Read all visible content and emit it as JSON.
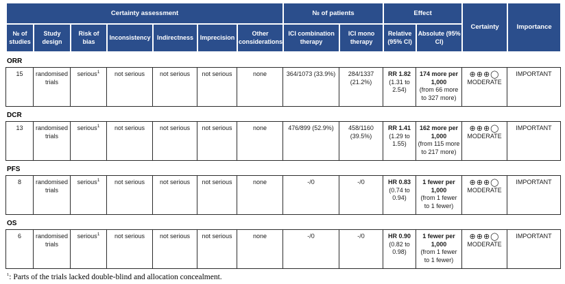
{
  "header": {
    "group_certainty": "Certainty assessment",
    "group_patients": "№ of patients",
    "group_effect": "Effect",
    "certainty": "Certainty",
    "importance": "Importance",
    "columns": [
      "№ of studies",
      "Study design",
      "Risk of bias",
      "Inconsistency",
      "Indirectness",
      "Imprecision",
      "Other considerations",
      "ICI combination therapy",
      "ICI mono therapy",
      "Relative (95% CI)",
      "Absolute (95% CI)"
    ]
  },
  "accent_color": "#2B4E8C",
  "sections": [
    {
      "label": "ORR",
      "studies": "15",
      "design": "randomised trials",
      "risk_of_bias": "serious",
      "risk_sup": "1",
      "inconsistency": "not serious",
      "indirectness": "not serious",
      "imprecision": "not serious",
      "other": "none",
      "combo": "364/1073 (33.9%)",
      "mono": "284/1337 (21.2%)",
      "relative_bold": "RR 1.82",
      "relative_ci": "(1.31 to 2.54)",
      "absolute_bold": "174 more per 1,000",
      "absolute_ci": "(from 66 more to 327 more)",
      "certainty_symbols": "⊕⊕⊕◯",
      "certainty_grade": "MODERATE",
      "importance": "IMPORTANT"
    },
    {
      "label": "DCR",
      "studies": "13",
      "design": "randomised trials",
      "risk_of_bias": "serious",
      "risk_sup": "1",
      "inconsistency": "not serious",
      "indirectness": "not serious",
      "imprecision": "not serious",
      "other": "none",
      "combo": "476/899 (52.9%)",
      "mono": "458/1160 (39.5%)",
      "relative_bold": "RR 1.41",
      "relative_ci": "(1.29 to 1.55)",
      "absolute_bold": "162 more per 1,000",
      "absolute_ci": "(from 115 more to 217 more)",
      "certainty_symbols": "⊕⊕⊕◯",
      "certainty_grade": "MODERATE",
      "importance": "IMPORTANT"
    },
    {
      "label": "PFS",
      "studies": "8",
      "design": "randomised trials",
      "risk_of_bias": "serious",
      "risk_sup": "1",
      "inconsistency": "not serious",
      "indirectness": "not serious",
      "imprecision": "not serious",
      "other": "none",
      "combo": "-/0",
      "mono": "-/0",
      "relative_bold": "HR 0.83",
      "relative_ci": "(0.74 to 0.94)",
      "absolute_bold": "1 fewer per 1,000",
      "absolute_ci": "(from 1 fewer to 1 fewer)",
      "certainty_symbols": "⊕⊕⊕◯",
      "certainty_grade": "MODERATE",
      "importance": "IMPORTANT"
    },
    {
      "label": "OS",
      "studies": "6",
      "design": "randomised trials",
      "risk_of_bias": "serious",
      "risk_sup": "1",
      "inconsistency": "not serious",
      "indirectness": "not serious",
      "imprecision": "not serious",
      "other": "none",
      "combo": "-/0",
      "mono": "-/0",
      "relative_bold": "HR 0.90",
      "relative_ci": "(0.82 to 0.98)",
      "absolute_bold": "1 fewer per 1,000",
      "absolute_ci": "(from 1 fewer to 1 fewer)",
      "certainty_symbols": "⊕⊕⊕◯",
      "certainty_grade": "MODERATE",
      "importance": "IMPORTANT"
    }
  ],
  "footnote": {
    "sup": "1",
    "text": ": Parts of the trials lacked double-blind and allocation concealment."
  }
}
